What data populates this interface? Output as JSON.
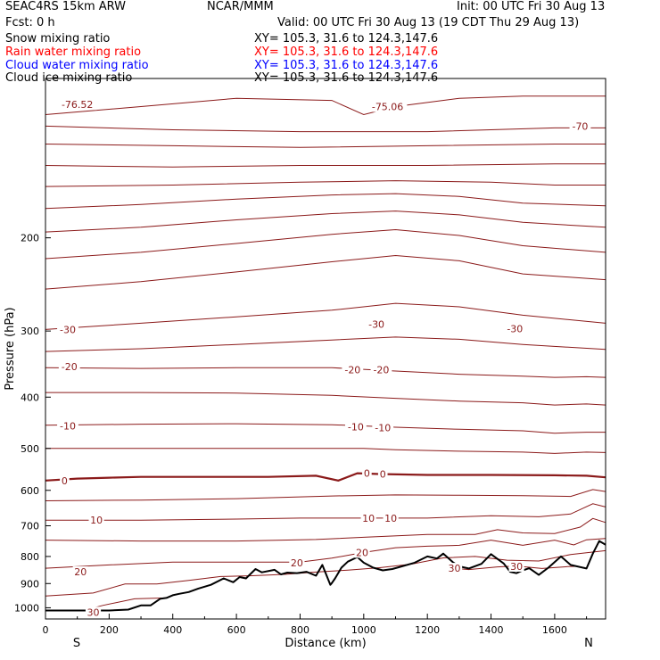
{
  "header": {
    "model": "SEAC4RS 15km ARW",
    "center": "NCAR/MMM",
    "init": "Init: 00 UTC Fri 30 Aug 13",
    "fcst": "Fcst:     0 h",
    "valid": "Valid: 00 UTC Fri 30 Aug 13 (19 CDT Thu 29 Aug 13)"
  },
  "fields": [
    {
      "name": "Snow mixing ratio",
      "xy": "XY= 105.3, 31.6 to 124.3,147.6",
      "color": "#000000"
    },
    {
      "name": "Rain water mixing ratio",
      "xy": "XY= 105.3, 31.6 to 124.3,147.6",
      "color": "#ff0000"
    },
    {
      "name": "Cloud water mixing ratio",
      "xy": "XY= 105.3, 31.6 to 124.3,147.6",
      "color": "#0000ff"
    },
    {
      "name": "Cloud ice mixing ratio",
      "xy": "XY= 105.3, 31.6 to 124.3,147.6",
      "color": "#000000"
    }
  ],
  "chart_data": {
    "type": "line",
    "xlabel": "Distance (km)",
    "ylabel": "Pressure (hPa)",
    "xlim": [
      0,
      1760
    ],
    "ylim": [
      1050,
      100
    ],
    "y_scale": "log",
    "x_ticks": [
      "0",
      "200",
      "400",
      "600",
      "800",
      "1000",
      "1200",
      "1400",
      "1600"
    ],
    "y_ticks": [
      "200",
      "300",
      "400",
      "500",
      "600",
      "700",
      "800",
      "900",
      "1000"
    ],
    "endpoints": {
      "left": "S",
      "right": "N"
    },
    "isotherm_color": "#8b1a1a",
    "terrain_color": "#000000",
    "isotherm_labels": [
      {
        "text": "-76.52",
        "x": 100,
        "p": 112
      },
      {
        "text": "-75.06",
        "x": 1075,
        "p": 113
      },
      {
        "text": "-70",
        "x": 1680,
        "p": 123
      },
      {
        "text": "-30",
        "x": 70,
        "p": 298
      },
      {
        "text": "-30",
        "x": 1040,
        "p": 291
      },
      {
        "text": "-30",
        "x": 1475,
        "p": 297
      },
      {
        "text": "-20",
        "x": 75,
        "p": 350
      },
      {
        "text": "-20",
        "x": 965,
        "p": 355
      },
      {
        "text": "-20",
        "x": 1055,
        "p": 355
      },
      {
        "text": "-10",
        "x": 70,
        "p": 453
      },
      {
        "text": "-10",
        "x": 975,
        "p": 455
      },
      {
        "text": "-10",
        "x": 1060,
        "p": 457
      },
      {
        "text": "0",
        "x": 60,
        "p": 575
      },
      {
        "text": "0",
        "x": 1010,
        "p": 557
      },
      {
        "text": "0",
        "x": 1060,
        "p": 559
      },
      {
        "text": "10",
        "x": 160,
        "p": 683
      },
      {
        "text": "10",
        "x": 1015,
        "p": 677
      },
      {
        "text": "10",
        "x": 1085,
        "p": 677
      },
      {
        "text": "20",
        "x": 995,
        "p": 786
      },
      {
        "text": "20",
        "x": 790,
        "p": 822
      },
      {
        "text": "20",
        "x": 110,
        "p": 855
      },
      {
        "text": "30",
        "x": 1285,
        "p": 842
      },
      {
        "text": "30",
        "x": 1480,
        "p": 835
      },
      {
        "text": "30",
        "x": 150,
        "p": 1019
      }
    ],
    "isotherms": [
      {
        "name": "-75",
        "x": [
          0,
          300,
          600,
          900,
          1000,
          1100,
          1300,
          1500,
          1760
        ],
        "p": [
          117,
          113,
          109,
          110,
          117,
          113,
          109,
          108,
          108
        ]
      },
      {
        "name": "-70",
        "x": [
          0,
          400,
          800,
          1200,
          1600,
          1760
        ],
        "p": [
          123,
          125,
          126,
          126,
          124,
          124
        ]
      },
      {
        "name": "-65",
        "x": [
          0,
          400,
          800,
          1200,
          1600,
          1760
        ],
        "p": [
          133,
          134,
          135,
          134,
          133,
          133
        ]
      },
      {
        "name": "-60",
        "x": [
          0,
          400,
          800,
          1200,
          1600,
          1760
        ],
        "p": [
          146,
          147,
          146,
          146,
          145,
          145
        ]
      },
      {
        "name": "-55",
        "x": [
          0,
          400,
          800,
          1100,
          1400,
          1600,
          1760
        ],
        "p": [
          160,
          159,
          157,
          156,
          157,
          159,
          159
        ]
      },
      {
        "name": "-50",
        "x": [
          0,
          300,
          600,
          900,
          1100,
          1300,
          1500,
          1760
        ],
        "p": [
          176,
          173,
          169,
          166,
          165,
          167,
          172,
          174
        ]
      },
      {
        "name": "-45",
        "x": [
          0,
          300,
          600,
          900,
          1100,
          1300,
          1500,
          1760
        ],
        "p": [
          195,
          191,
          185,
          180,
          178,
          181,
          187,
          191
        ]
      },
      {
        "name": "-40",
        "x": [
          0,
          300,
          600,
          900,
          1100,
          1300,
          1500,
          1760
        ],
        "p": [
          219,
          213,
          205,
          197,
          193,
          198,
          207,
          213
        ]
      },
      {
        "name": "-35",
        "x": [
          0,
          300,
          600,
          900,
          1100,
          1300,
          1500,
          1760
        ],
        "p": [
          250,
          242,
          232,
          222,
          216,
          221,
          234,
          240
        ]
      },
      {
        "name": "-30",
        "x": [
          0,
          300,
          600,
          900,
          1100,
          1300,
          1500,
          1760
        ],
        "p": [
          298,
          290,
          282,
          274,
          266,
          270,
          280,
          290
        ]
      },
      {
        "name": "-25",
        "x": [
          0,
          300,
          600,
          900,
          1100,
          1300,
          1500,
          1760
        ],
        "p": [
          328,
          324,
          318,
          312,
          308,
          311,
          318,
          325
        ]
      },
      {
        "name": "-20",
        "x": [
          0,
          300,
          600,
          900,
          1100,
          1300,
          1500,
          1600,
          1700,
          1760
        ],
        "p": [
          352,
          353,
          352,
          352,
          357,
          362,
          365,
          367,
          366,
          367
        ]
      },
      {
        "name": "-15",
        "x": [
          0,
          300,
          600,
          900,
          1100,
          1300,
          1500,
          1600,
          1700,
          1760
        ],
        "p": [
          392,
          392,
          393,
          397,
          402,
          407,
          410,
          414,
          412,
          414
        ]
      },
      {
        "name": "-10",
        "x": [
          0,
          300,
          600,
          900,
          1100,
          1300,
          1500,
          1600,
          1700,
          1760
        ],
        "p": [
          452,
          450,
          449,
          451,
          456,
          460,
          463,
          468,
          466,
          466
        ]
      },
      {
        "name": "-5",
        "x": [
          0,
          300,
          600,
          800,
          1000,
          1100,
          1300,
          1500,
          1600,
          1700,
          1760
        ],
        "p": [
          500,
          500,
          500,
          500,
          500,
          503,
          506,
          508,
          511,
          508,
          509
        ]
      },
      {
        "name": "0",
        "thick": true,
        "x": [
          0,
          100,
          200,
          300,
          500,
          700,
          850,
          920,
          980,
          1050,
          1200,
          1400,
          1600,
          1700,
          1760
        ],
        "p": [
          575,
          570,
          568,
          566,
          566,
          566,
          563,
          575,
          557,
          559,
          561,
          561,
          562,
          563,
          567
        ]
      },
      {
        "name": "5",
        "x": [
          0,
          300,
          600,
          900,
          1100,
          1300,
          1500,
          1650,
          1720,
          1760
        ],
        "p": [
          628,
          626,
          622,
          615,
          612,
          613,
          614,
          616,
          598,
          603
        ]
      },
      {
        "name": "10",
        "x": [
          0,
          300,
          600,
          800,
          1000,
          1200,
          1400,
          1550,
          1650,
          1720,
          1760
        ],
        "p": [
          683,
          683,
          680,
          677,
          677,
          677,
          670,
          673,
          665,
          636,
          645
        ]
      },
      {
        "name": "15",
        "x": [
          0,
          300,
          600,
          850,
          1000,
          1200,
          1350,
          1420,
          1500,
          1600,
          1680,
          1720,
          1760
        ],
        "p": [
          745,
          748,
          748,
          743,
          736,
          727,
          727,
          712,
          722,
          724,
          704,
          678,
          690
        ]
      },
      {
        "name": "20",
        "x": [
          0,
          200,
          400,
          600,
          800,
          900,
          1000,
          1100,
          1200,
          1300,
          1400,
          1500,
          1600,
          1660,
          1700,
          1760
        ],
        "p": [
          842,
          830,
          820,
          820,
          820,
          806,
          786,
          770,
          765,
          762,
          745,
          762,
          745,
          761,
          744,
          740
        ]
      },
      {
        "name": "25",
        "x": [
          0,
          150,
          250,
          350,
          450,
          550,
          650,
          750,
          850,
          950,
          1050,
          1150,
          1250,
          1350,
          1450,
          1550,
          1650,
          1700,
          1760
        ],
        "p": [
          950,
          938,
          902,
          902,
          888,
          873,
          870,
          865,
          856,
          849,
          840,
          827,
          805,
          800,
          813,
          816,
          793,
          787,
          780
        ]
      },
      {
        "name": "30",
        "x": [
          120,
          180,
          280,
          380
        ],
        "p": [
          1012,
          990,
          962,
          958
        ]
      },
      {
        "name": "30",
        "x": [
          1280,
          1330,
          1420,
          1480,
          1560,
          1640,
          1670
        ],
        "p": [
          842,
          847,
          837,
          834,
          843,
          836,
          835
        ]
      }
    ],
    "terrain": {
      "x": [
        0,
        100,
        200,
        260,
        300,
        330,
        360,
        380,
        400,
        420,
        450,
        480,
        520,
        560,
        590,
        610,
        630,
        660,
        680,
        720,
        740,
        760,
        790,
        820,
        850,
        870,
        895,
        900,
        910,
        930,
        950,
        980,
        1000,
        1030,
        1060,
        1090,
        1120,
        1160,
        1200,
        1230,
        1250,
        1280,
        1300,
        1330,
        1370,
        1400,
        1440,
        1460,
        1480,
        1500,
        1520,
        1550,
        1580,
        1620,
        1650,
        1700,
        1720,
        1740,
        1760
      ],
      "p": [
        1012,
        1012,
        1012,
        1008,
        990,
        990,
        962,
        958,
        947,
        941,
        934,
        920,
        905,
        880,
        895,
        875,
        880,
        845,
        857,
        848,
        865,
        858,
        860,
        855,
        870,
        830,
        905,
        898,
        880,
        840,
        818,
        802,
        822,
        840,
        850,
        845,
        835,
        822,
        800,
        807,
        790,
        820,
        835,
        843,
        826,
        792,
        825,
        855,
        860,
        850,
        842,
        867,
        840,
        800,
        830,
        843,
        790,
        748,
        760
      ]
    }
  }
}
